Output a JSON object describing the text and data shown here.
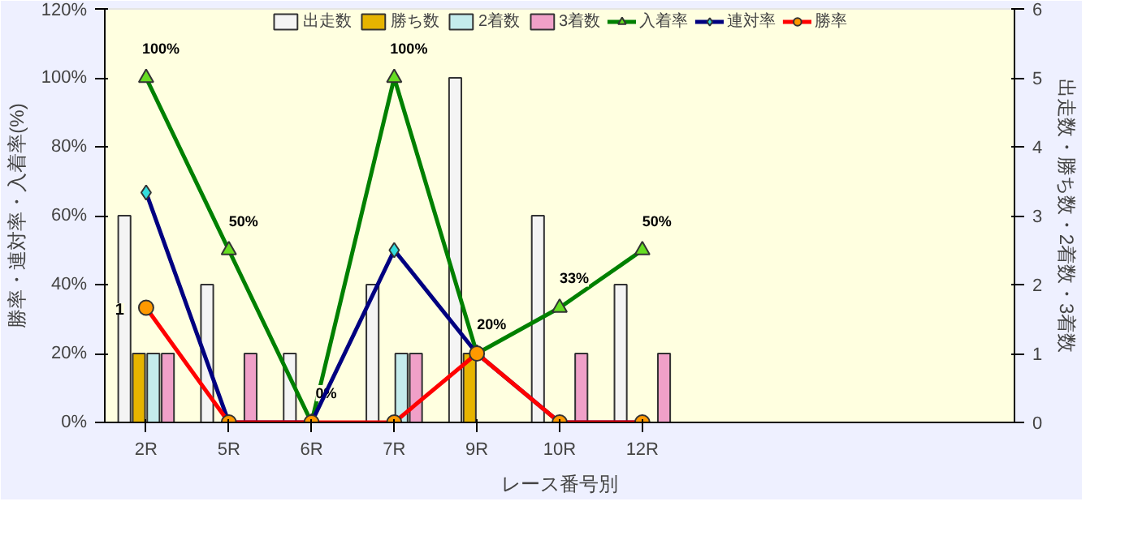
{
  "chart_data": {
    "type": "bar",
    "categories": [
      "2R",
      "5R",
      "6R",
      "7R",
      "9R",
      "10R",
      "12R",
      null,
      null,
      null,
      null
    ],
    "xlabel": "レース番号別",
    "ylabel": "勝率・連対率・入着率(%)",
    "y2label": "出走数・勝ち数・2着数・3着数",
    "ylim": [
      0,
      120
    ],
    "yticks": [
      {
        "value": 0,
        "label": "0%"
      },
      {
        "value": 20,
        "label": "20%"
      },
      {
        "value": 40,
        "label": "40%"
      },
      {
        "value": 60,
        "label": "60%"
      },
      {
        "value": 80,
        "label": "80%"
      },
      {
        "value": 100,
        "label": "100%"
      },
      {
        "value": 120,
        "label": "120%"
      }
    ],
    "y2lim": [
      0,
      6
    ],
    "y2ticks": [
      0,
      1,
      2,
      3,
      4,
      5,
      6
    ],
    "grid": false,
    "legend": "top",
    "series": [
      {
        "name": "出走数",
        "axis": "y2",
        "color": "#f4f4f4",
        "values": [
          3,
          2,
          1,
          2,
          5,
          3,
          2,
          null,
          null,
          null,
          null
        ]
      },
      {
        "name": "勝ち数",
        "axis": "y2",
        "color": "#e6b400",
        "values": [
          1,
          0,
          0,
          0,
          1,
          0,
          0,
          null,
          null,
          null,
          null
        ]
      },
      {
        "name": "2着数",
        "axis": "y2",
        "color": "#c4ecec",
        "values": [
          1,
          0,
          0,
          1,
          0,
          0,
          0,
          null,
          null,
          null,
          null
        ]
      },
      {
        "name": "3着数",
        "axis": "y2",
        "color": "#f0a0c8",
        "values": [
          1,
          1,
          0,
          1,
          0,
          1,
          1,
          null,
          null,
          null,
          null
        ]
      },
      {
        "name": "入着率",
        "type": "line",
        "color": "#008000",
        "marker": "triangle",
        "values": [
          100,
          50,
          0,
          100,
          20,
          33.3,
          50,
          null,
          null,
          null,
          null
        ],
        "value_labels": [
          "100%",
          "50%",
          "0%",
          "100%",
          "20%",
          "33%",
          "50%",
          null,
          null,
          null,
          null
        ]
      },
      {
        "name": "連対率",
        "type": "line",
        "color": "#000080",
        "marker": "diamond",
        "values": [
          66.7,
          0,
          0,
          50,
          20,
          0,
          0,
          null,
          null,
          null,
          null
        ]
      },
      {
        "name": "勝率",
        "type": "line",
        "color": "#ff0000",
        "marker": "circle",
        "values": [
          33.3,
          0,
          0,
          0,
          20,
          0,
          0,
          null,
          null,
          null,
          null
        ]
      }
    ],
    "annotations": [
      {
        "text": "1",
        "x": "2R",
        "y": 20
      }
    ]
  }
}
